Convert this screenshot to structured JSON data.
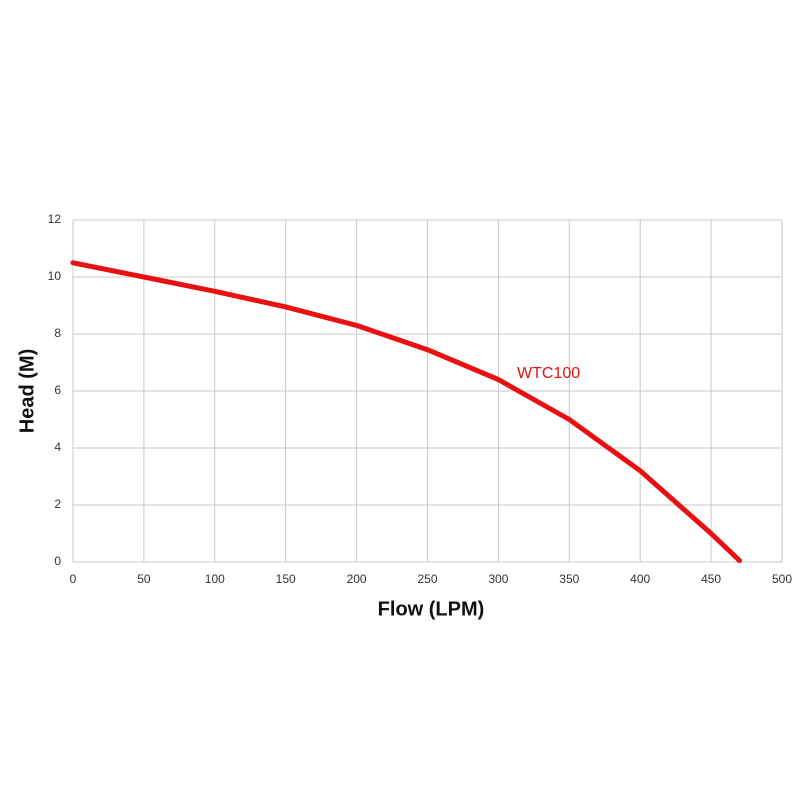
{
  "chart_data": {
    "type": "line",
    "x_label": "Flow (LPM)",
    "y_label": "Head (M)",
    "x": [
      0,
      50,
      100,
      150,
      200,
      250,
      300,
      350,
      400,
      450,
      470
    ],
    "series": [
      {
        "name": "WTC100",
        "color": "#e81010",
        "values": [
          10.5,
          10.0,
          9.5,
          8.95,
          8.3,
          7.45,
          6.4,
          5.0,
          3.2,
          1.0,
          0.05
        ]
      }
    ],
    "xlim": [
      0,
      500
    ],
    "xticks": [
      0,
      50,
      100,
      150,
      200,
      250,
      300,
      350,
      400,
      450,
      500
    ],
    "ylim": [
      0,
      12
    ],
    "yticks": [
      0,
      2,
      4,
      6,
      8,
      10,
      12
    ],
    "grid": true
  }
}
